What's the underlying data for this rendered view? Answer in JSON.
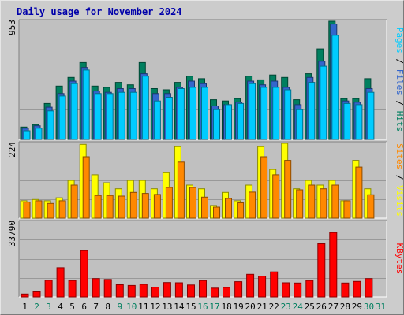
{
  "title": "Daily usage for November 2024",
  "colors": {
    "background": "#cccccc",
    "panel": "#c0c0c0",
    "hits": "#007f5f",
    "files": "#3366cc",
    "pages": "#00ccff",
    "visits": "#ffff00",
    "sites": "#ff8800",
    "kbytes": "#ff0000",
    "title": "#0000aa",
    "weekend_day": "#007f5f"
  },
  "chart_data": [
    {
      "type": "bar",
      "title": "Daily usage for November 2024",
      "categories": [
        "1",
        "2",
        "3",
        "4",
        "5",
        "6",
        "7",
        "8",
        "9",
        "10",
        "11",
        "12",
        "13",
        "14",
        "15",
        "16",
        "17",
        "18",
        "19",
        "20",
        "21",
        "22",
        "23",
        "24",
        "25",
        "26",
        "27",
        "28",
        "29",
        "30",
        "31"
      ],
      "weekend_days": [
        "2",
        "3",
        "9",
        "10",
        "16",
        "17",
        "23",
        "24",
        "30",
        "31"
      ],
      "series": [
        {
          "name": "Hits",
          "values": [
            100,
            120,
            290,
            430,
            500,
            620,
            430,
            420,
            460,
            440,
            620,
            410,
            400,
            460,
            510,
            490,
            320,
            310,
            330,
            510,
            480,
            520,
            500,
            320,
            530,
            730,
            953,
            330,
            330,
            490,
            0
          ]
        },
        {
          "name": "Files",
          "values": [
            90,
            110,
            260,
            370,
            470,
            580,
            390,
            380,
            410,
            410,
            530,
            370,
            370,
            420,
            470,
            450,
            270,
            280,
            300,
            470,
            440,
            470,
            420,
            280,
            500,
            630,
            930,
            310,
            300,
            410,
            0
          ]
        },
        {
          "name": "Pages",
          "values": [
            70,
            90,
            230,
            350,
            450,
            560,
            370,
            370,
            380,
            380,
            510,
            310,
            340,
            410,
            420,
            420,
            240,
            280,
            290,
            450,
            420,
            420,
            400,
            240,
            460,
            590,
            840,
            290,
            280,
            380,
            0
          ]
        }
      ],
      "ylabel": "Pages / Files / Hits",
      "ymax_label": "953",
      "ylim": [
        0,
        953
      ]
    },
    {
      "type": "bar",
      "categories": [
        "1",
        "2",
        "3",
        "4",
        "5",
        "6",
        "7",
        "8",
        "9",
        "10",
        "11",
        "12",
        "13",
        "14",
        "15",
        "16",
        "17",
        "18",
        "19",
        "20",
        "21",
        "22",
        "23",
        "24",
        "25",
        "26",
        "27",
        "28",
        "29",
        "30",
        "31"
      ],
      "series": [
        {
          "name": "Visits",
          "values": [
            52,
            56,
            52,
            61,
            113,
            221,
            130,
            106,
            88,
            113,
            113,
            88,
            136,
            214,
            99,
            88,
            38,
            77,
            52,
            99,
            214,
            146,
            224,
            88,
            113,
            99,
            113,
            52,
            173,
            88,
            0
          ]
        },
        {
          "name": "Sites",
          "values": [
            48,
            52,
            44,
            52,
            99,
            184,
            68,
            68,
            66,
            77,
            74,
            71,
            92,
            168,
            92,
            63,
            33,
            59,
            46,
            78,
            184,
            130,
            173,
            85,
            99,
            88,
            99,
            52,
            153,
            70,
            0
          ]
        }
      ],
      "ylabel": "Sites / Visits",
      "ymax_label": "224",
      "ylim": [
        0,
        224
      ]
    },
    {
      "type": "bar",
      "categories": [
        "1",
        "2",
        "3",
        "4",
        "5",
        "6",
        "7",
        "8",
        "9",
        "10",
        "11",
        "12",
        "13",
        "14",
        "15",
        "16",
        "17",
        "18",
        "19",
        "20",
        "21",
        "22",
        "23",
        "24",
        "25",
        "26",
        "27",
        "28",
        "29",
        "30",
        "31"
      ],
      "series": [
        {
          "name": "KBytes",
          "values": [
            1300,
            2300,
            7500,
            13200,
            7400,
            20900,
            8300,
            7900,
            5500,
            5200,
            5700,
            4400,
            6500,
            6400,
            5400,
            7400,
            4000,
            4300,
            6900,
            10200,
            9400,
            11300,
            6400,
            6300,
            7400,
            24000,
            29100,
            6300,
            7000,
            8300,
            0
          ]
        }
      ],
      "ylabel": "KBytes",
      "ymax_label": "33790",
      "ylim": [
        0,
        33790
      ]
    }
  ]
}
